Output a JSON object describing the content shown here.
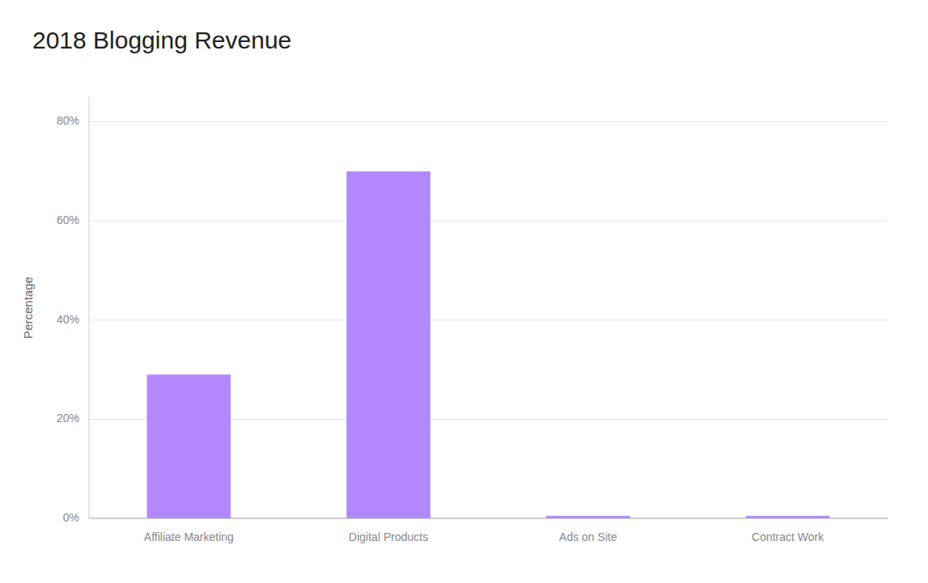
{
  "chart_data": {
    "type": "bar",
    "title": "2018 Blogging Revenue",
    "categories": [
      "Affiliate Marketing",
      "Digital Products",
      "Ads on Site",
      "Contract Work"
    ],
    "values": [
      29,
      70,
      0.5,
      0.5
    ],
    "color": "#b388ff",
    "ylabel": "Percentage",
    "ylim": [
      0,
      85
    ],
    "yticks": [
      {
        "value": 0,
        "label": "0%"
      },
      {
        "value": 20,
        "label": "20%"
      },
      {
        "value": 40,
        "label": "40%"
      },
      {
        "value": 60,
        "label": "60%"
      },
      {
        "value": 80,
        "label": "80%"
      }
    ],
    "grid": true
  }
}
